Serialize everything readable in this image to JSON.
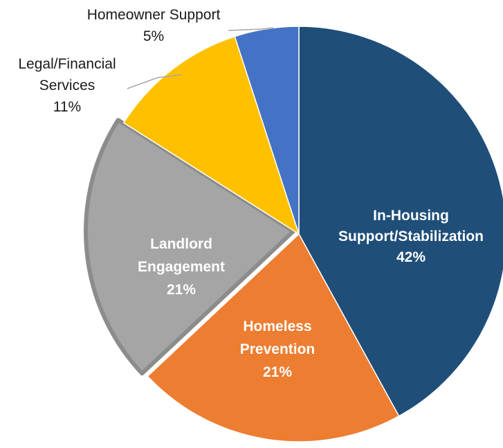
{
  "chart_data": {
    "type": "pie",
    "slices": [
      {
        "label_lines": [
          "In-Housing",
          "Support/Stabilization"
        ],
        "pct_label": "42%",
        "value": 42,
        "color": "#1F4E79",
        "label_style": "inside"
      },
      {
        "label_lines": [
          "Homeless",
          "Prevention"
        ],
        "pct_label": "21%",
        "value": 21,
        "color": "#ED7D31",
        "label_style": "inside"
      },
      {
        "label_lines": [
          "Landlord",
          "Engagement"
        ],
        "pct_label": "21%",
        "value": 21,
        "color": "#A5A5A5",
        "label_style": "inside"
      },
      {
        "label_lines": [
          "Legal/Financial",
          "Services"
        ],
        "pct_label": "11%",
        "value": 11,
        "color": "#FFC000",
        "label_style": "outside"
      },
      {
        "label_lines": [
          "Homeowner Support"
        ],
        "pct_label": "5%",
        "value": 5,
        "color": "#4472C4",
        "label_style": "outside"
      }
    ]
  }
}
